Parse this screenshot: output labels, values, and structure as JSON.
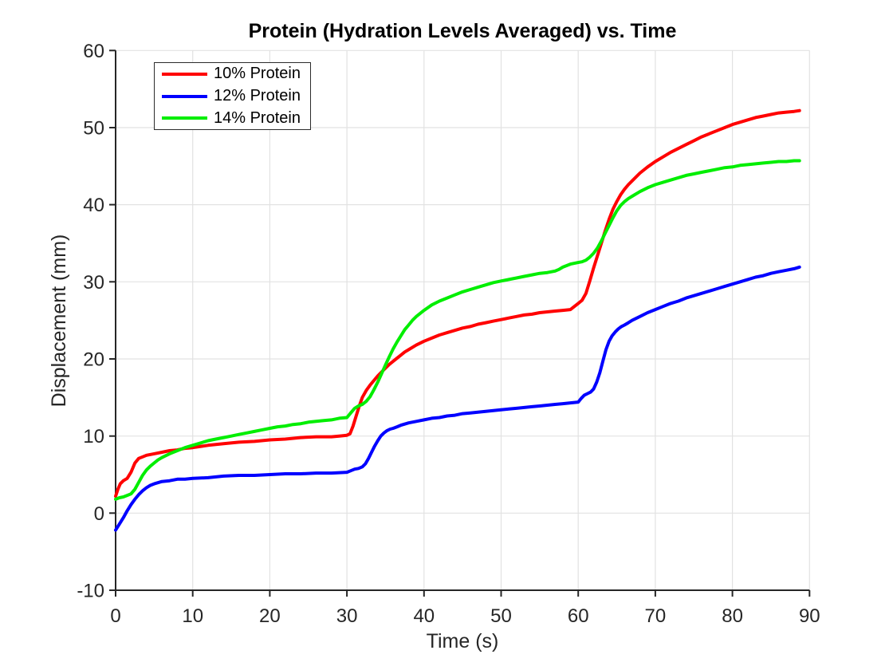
{
  "chart_data": {
    "type": "line",
    "title": "Protein (Hydration Levels Averaged) vs. Time",
    "xlabel": "Time (s)",
    "ylabel": "Displacement (mm)",
    "xlim": [
      0,
      90
    ],
    "ylim": [
      -10,
      60
    ],
    "x_ticks": [
      0,
      10,
      20,
      30,
      40,
      50,
      60,
      70,
      80,
      90
    ],
    "y_ticks": [
      -10,
      0,
      10,
      20,
      30,
      40,
      50,
      60
    ],
    "grid": true,
    "legend_position": "top-left",
    "axis_color": "#262626",
    "grid_color": "#e2e2e2",
    "background_color": "#ffffff",
    "series": [
      {
        "name": "10% Protein",
        "color": "#ff0000",
        "points": [
          [
            0,
            2.2
          ],
          [
            0.3,
            3.1
          ],
          [
            0.6,
            3.8
          ],
          [
            1,
            4.2
          ],
          [
            1.5,
            4.5
          ],
          [
            2,
            5.3
          ],
          [
            2.5,
            6.5
          ],
          [
            3,
            7.1
          ],
          [
            3.5,
            7.3
          ],
          [
            4,
            7.5
          ],
          [
            5,
            7.7
          ],
          [
            6,
            7.9
          ],
          [
            7,
            8.1
          ],
          [
            8,
            8.2
          ],
          [
            9,
            8.4
          ],
          [
            10,
            8.5
          ],
          [
            12,
            8.8
          ],
          [
            14,
            9.0
          ],
          [
            16,
            9.2
          ],
          [
            18,
            9.3
          ],
          [
            20,
            9.5
          ],
          [
            22,
            9.6
          ],
          [
            24,
            9.8
          ],
          [
            26,
            9.9
          ],
          [
            28,
            9.9
          ],
          [
            29,
            10.0
          ],
          [
            30,
            10.1
          ],
          [
            30.4,
            10.3
          ],
          [
            30.8,
            11.3
          ],
          [
            31.2,
            12.6
          ],
          [
            31.6,
            13.9
          ],
          [
            32,
            15.0
          ],
          [
            32.5,
            15.9
          ],
          [
            33,
            16.6
          ],
          [
            33.5,
            17.2
          ],
          [
            34,
            17.8
          ],
          [
            34.5,
            18.3
          ],
          [
            35,
            18.8
          ],
          [
            35.5,
            19.3
          ],
          [
            36,
            19.7
          ],
          [
            36.5,
            20.1
          ],
          [
            37,
            20.5
          ],
          [
            37.5,
            20.9
          ],
          [
            38,
            21.2
          ],
          [
            39,
            21.8
          ],
          [
            40,
            22.3
          ],
          [
            41,
            22.7
          ],
          [
            42,
            23.1
          ],
          [
            43,
            23.4
          ],
          [
            44,
            23.7
          ],
          [
            45,
            24.0
          ],
          [
            46,
            24.2
          ],
          [
            47,
            24.5
          ],
          [
            48,
            24.7
          ],
          [
            49,
            24.9
          ],
          [
            50,
            25.1
          ],
          [
            51,
            25.3
          ],
          [
            52,
            25.5
          ],
          [
            53,
            25.7
          ],
          [
            54,
            25.8
          ],
          [
            55,
            26.0
          ],
          [
            56,
            26.1
          ],
          [
            57,
            26.2
          ],
          [
            58,
            26.3
          ],
          [
            59,
            26.4
          ],
          [
            59.5,
            26.8
          ],
          [
            60,
            27.2
          ],
          [
            60.5,
            27.6
          ],
          [
            61,
            28.5
          ],
          [
            61.5,
            30.1
          ],
          [
            62,
            31.8
          ],
          [
            62.5,
            33.4
          ],
          [
            63,
            35.0
          ],
          [
            63.5,
            36.6
          ],
          [
            64,
            38.1
          ],
          [
            64.5,
            39.4
          ],
          [
            65,
            40.4
          ],
          [
            65.5,
            41.3
          ],
          [
            66,
            42.0
          ],
          [
            66.5,
            42.6
          ],
          [
            67,
            43.1
          ],
          [
            68,
            44.1
          ],
          [
            69,
            44.9
          ],
          [
            70,
            45.6
          ],
          [
            71,
            46.2
          ],
          [
            72,
            46.8
          ],
          [
            73,
            47.3
          ],
          [
            74,
            47.8
          ],
          [
            75,
            48.3
          ],
          [
            76,
            48.8
          ],
          [
            77,
            49.2
          ],
          [
            78,
            49.6
          ],
          [
            79,
            50.0
          ],
          [
            80,
            50.4
          ],
          [
            81,
            50.7
          ],
          [
            82,
            51.0
          ],
          [
            83,
            51.3
          ],
          [
            84,
            51.5
          ],
          [
            85,
            51.7
          ],
          [
            86,
            51.9
          ],
          [
            87,
            52.0
          ],
          [
            88,
            52.1
          ],
          [
            88.7,
            52.2
          ]
        ]
      },
      {
        "name": "12% Protein",
        "color": "#0000ff",
        "points": [
          [
            0,
            -2.2
          ],
          [
            0.5,
            -1.4
          ],
          [
            1,
            -0.6
          ],
          [
            1.5,
            0.3
          ],
          [
            2,
            1.1
          ],
          [
            2.5,
            1.8
          ],
          [
            3,
            2.4
          ],
          [
            3.5,
            2.9
          ],
          [
            4,
            3.3
          ],
          [
            4.5,
            3.6
          ],
          [
            5,
            3.8
          ],
          [
            6,
            4.1
          ],
          [
            7,
            4.2
          ],
          [
            8,
            4.4
          ],
          [
            9,
            4.4
          ],
          [
            10,
            4.5
          ],
          [
            12,
            4.6
          ],
          [
            14,
            4.8
          ],
          [
            16,
            4.9
          ],
          [
            18,
            4.9
          ],
          [
            20,
            5.0
          ],
          [
            22,
            5.1
          ],
          [
            24,
            5.1
          ],
          [
            26,
            5.2
          ],
          [
            28,
            5.2
          ],
          [
            30,
            5.3
          ],
          [
            30.5,
            5.5
          ],
          [
            31,
            5.7
          ],
          [
            31.5,
            5.8
          ],
          [
            32,
            6.0
          ],
          [
            32.4,
            6.4
          ],
          [
            32.8,
            7.1
          ],
          [
            33.2,
            7.9
          ],
          [
            33.6,
            8.7
          ],
          [
            34,
            9.4
          ],
          [
            34.4,
            10.0
          ],
          [
            34.8,
            10.4
          ],
          [
            35.2,
            10.7
          ],
          [
            35.6,
            10.9
          ],
          [
            36,
            11.0
          ],
          [
            36.5,
            11.2
          ],
          [
            37,
            11.4
          ],
          [
            38,
            11.7
          ],
          [
            39,
            11.9
          ],
          [
            40,
            12.1
          ],
          [
            41,
            12.3
          ],
          [
            42,
            12.4
          ],
          [
            43,
            12.6
          ],
          [
            44,
            12.7
          ],
          [
            45,
            12.9
          ],
          [
            46,
            13.0
          ],
          [
            47,
            13.1
          ],
          [
            48,
            13.2
          ],
          [
            49,
            13.3
          ],
          [
            50,
            13.4
          ],
          [
            51,
            13.5
          ],
          [
            52,
            13.6
          ],
          [
            53,
            13.7
          ],
          [
            54,
            13.8
          ],
          [
            55,
            13.9
          ],
          [
            56,
            14.0
          ],
          [
            57,
            14.1
          ],
          [
            58,
            14.2
          ],
          [
            59,
            14.3
          ],
          [
            60,
            14.4
          ],
          [
            60.4,
            14.9
          ],
          [
            60.8,
            15.3
          ],
          [
            61.2,
            15.5
          ],
          [
            61.6,
            15.7
          ],
          [
            62,
            16.1
          ],
          [
            62.4,
            17.0
          ],
          [
            62.8,
            18.2
          ],
          [
            63.2,
            19.7
          ],
          [
            63.6,
            21.2
          ],
          [
            64,
            22.3
          ],
          [
            64.4,
            23.0
          ],
          [
            64.8,
            23.5
          ],
          [
            65.2,
            23.9
          ],
          [
            65.6,
            24.2
          ],
          [
            66,
            24.4
          ],
          [
            66.5,
            24.7
          ],
          [
            67,
            25.0
          ],
          [
            68,
            25.5
          ],
          [
            69,
            26.0
          ],
          [
            70,
            26.4
          ],
          [
            71,
            26.8
          ],
          [
            72,
            27.2
          ],
          [
            73,
            27.5
          ],
          [
            74,
            27.9
          ],
          [
            75,
            28.2
          ],
          [
            76,
            28.5
          ],
          [
            77,
            28.8
          ],
          [
            78,
            29.1
          ],
          [
            79,
            29.4
          ],
          [
            80,
            29.7
          ],
          [
            81,
            30.0
          ],
          [
            82,
            30.3
          ],
          [
            83,
            30.6
          ],
          [
            84,
            30.8
          ],
          [
            85,
            31.1
          ],
          [
            86,
            31.3
          ],
          [
            87,
            31.5
          ],
          [
            88,
            31.7
          ],
          [
            88.7,
            31.9
          ]
        ]
      },
      {
        "name": "14% Protein",
        "color": "#00ee00",
        "points": [
          [
            0,
            1.8
          ],
          [
            0.5,
            2.0
          ],
          [
            1,
            2.1
          ],
          [
            1.5,
            2.3
          ],
          [
            2,
            2.5
          ],
          [
            2.5,
            3.1
          ],
          [
            3,
            4.0
          ],
          [
            3.5,
            4.9
          ],
          [
            4,
            5.6
          ],
          [
            4.5,
            6.1
          ],
          [
            5,
            6.5
          ],
          [
            5.5,
            6.9
          ],
          [
            6,
            7.2
          ],
          [
            7,
            7.7
          ],
          [
            8,
            8.1
          ],
          [
            9,
            8.5
          ],
          [
            10,
            8.8
          ],
          [
            11,
            9.1
          ],
          [
            12,
            9.4
          ],
          [
            13,
            9.6
          ],
          [
            14,
            9.8
          ],
          [
            15,
            10.0
          ],
          [
            16,
            10.2
          ],
          [
            17,
            10.4
          ],
          [
            18,
            10.6
          ],
          [
            19,
            10.8
          ],
          [
            20,
            11.0
          ],
          [
            21,
            11.2
          ],
          [
            22,
            11.3
          ],
          [
            23,
            11.5
          ],
          [
            24,
            11.6
          ],
          [
            25,
            11.8
          ],
          [
            26,
            11.9
          ],
          [
            27,
            12.0
          ],
          [
            28,
            12.1
          ],
          [
            29,
            12.3
          ],
          [
            30,
            12.4
          ],
          [
            30.5,
            13.0
          ],
          [
            31,
            13.6
          ],
          [
            31.5,
            13.9
          ],
          [
            32,
            14.1
          ],
          [
            32.5,
            14.5
          ],
          [
            33,
            15.1
          ],
          [
            33.5,
            16.0
          ],
          [
            34,
            17.0
          ],
          [
            34.5,
            18.1
          ],
          [
            35,
            19.2
          ],
          [
            35.5,
            20.3
          ],
          [
            36,
            21.3
          ],
          [
            36.5,
            22.2
          ],
          [
            37,
            23.0
          ],
          [
            37.5,
            23.8
          ],
          [
            38,
            24.4
          ],
          [
            38.5,
            25.0
          ],
          [
            39,
            25.5
          ],
          [
            40,
            26.3
          ],
          [
            41,
            27.0
          ],
          [
            42,
            27.5
          ],
          [
            43,
            27.9
          ],
          [
            44,
            28.3
          ],
          [
            45,
            28.7
          ],
          [
            46,
            29.0
          ],
          [
            47,
            29.3
          ],
          [
            48,
            29.6
          ],
          [
            49,
            29.9
          ],
          [
            50,
            30.1
          ],
          [
            51,
            30.3
          ],
          [
            52,
            30.5
          ],
          [
            53,
            30.7
          ],
          [
            54,
            30.9
          ],
          [
            55,
            31.1
          ],
          [
            56,
            31.2
          ],
          [
            57,
            31.4
          ],
          [
            57.5,
            31.6
          ],
          [
            58,
            31.9
          ],
          [
            58.5,
            32.1
          ],
          [
            59,
            32.3
          ],
          [
            59.5,
            32.4
          ],
          [
            60,
            32.5
          ],
          [
            60.5,
            32.6
          ],
          [
            61,
            32.8
          ],
          [
            61.5,
            33.2
          ],
          [
            62,
            33.7
          ],
          [
            62.5,
            34.4
          ],
          [
            63,
            35.3
          ],
          [
            63.5,
            36.3
          ],
          [
            64,
            37.3
          ],
          [
            64.5,
            38.3
          ],
          [
            65,
            39.2
          ],
          [
            65.5,
            39.9
          ],
          [
            66,
            40.4
          ],
          [
            66.5,
            40.8
          ],
          [
            67,
            41.1
          ],
          [
            68,
            41.7
          ],
          [
            69,
            42.2
          ],
          [
            70,
            42.6
          ],
          [
            71,
            42.9
          ],
          [
            72,
            43.2
          ],
          [
            73,
            43.5
          ],
          [
            74,
            43.8
          ],
          [
            75,
            44.0
          ],
          [
            76,
            44.2
          ],
          [
            77,
            44.4
          ],
          [
            78,
            44.6
          ],
          [
            79,
            44.8
          ],
          [
            80,
            44.9
          ],
          [
            81,
            45.1
          ],
          [
            82,
            45.2
          ],
          [
            83,
            45.3
          ],
          [
            84,
            45.4
          ],
          [
            85,
            45.5
          ],
          [
            86,
            45.6
          ],
          [
            87,
            45.6
          ],
          [
            88,
            45.7
          ],
          [
            88.7,
            45.7
          ]
        ]
      }
    ]
  }
}
